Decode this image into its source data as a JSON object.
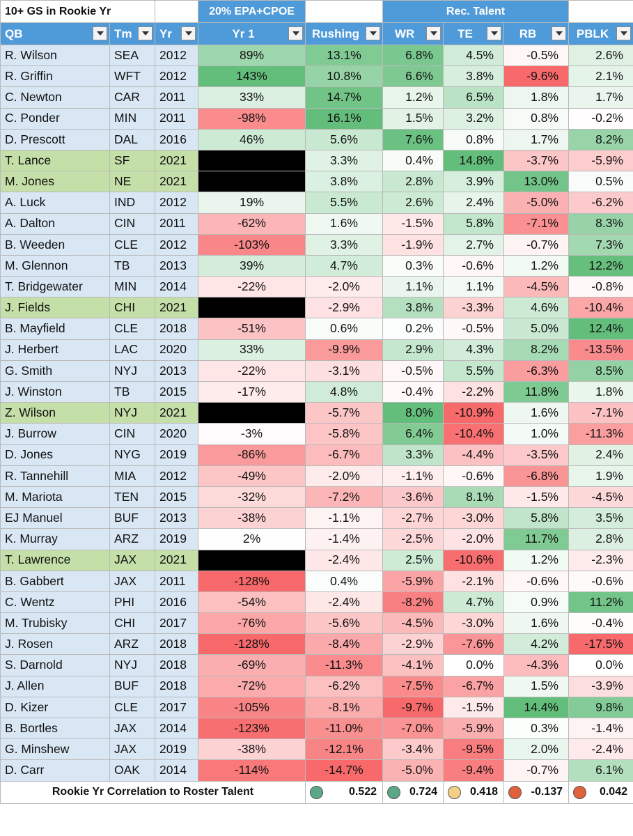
{
  "top_header": {
    "title": "10+ GS in Rookie Yr",
    "epa_group": "20% EPA+CPOE",
    "rec_group": "Rec. Talent"
  },
  "columns": [
    "QB",
    "Tm",
    "Yr",
    "Yr 1",
    "Rushing",
    "WR",
    "TE",
    "RB",
    "PBLK"
  ],
  "rows": [
    {
      "qb": "R. Wilson",
      "tm": "SEA",
      "yr": "2012",
      "yr1": "89%",
      "rush": "13.1%",
      "wr": "6.8%",
      "te": "4.5%",
      "rb": "-0.5%",
      "pblk": "2.6%"
    },
    {
      "qb": "R. Griffin",
      "tm": "WFT",
      "yr": "2012",
      "yr1": "143%",
      "rush": "10.8%",
      "wr": "6.6%",
      "te": "3.8%",
      "rb": "-9.6%",
      "pblk": "2.1%"
    },
    {
      "qb": "C. Newton",
      "tm": "CAR",
      "yr": "2011",
      "yr1": "33%",
      "rush": "14.7%",
      "wr": "1.2%",
      "te": "6.5%",
      "rb": "1.8%",
      "pblk": "1.7%"
    },
    {
      "qb": "C. Ponder",
      "tm": "MIN",
      "yr": "2011",
      "yr1": "-98%",
      "rush": "16.1%",
      "wr": "1.5%",
      "te": "3.2%",
      "rb": "0.8%",
      "pblk": "-0.2%"
    },
    {
      "qb": "D. Prescott",
      "tm": "DAL",
      "yr": "2016",
      "yr1": "46%",
      "rush": "5.6%",
      "wr": "7.6%",
      "te": "0.8%",
      "rb": "1.7%",
      "pblk": "8.2%"
    },
    {
      "qb": "T. Lance",
      "tm": "SF",
      "yr": "2021",
      "yr1": "",
      "rush": "3.3%",
      "wr": "0.4%",
      "te": "14.8%",
      "rb": "-3.7%",
      "pblk": "-5.9%"
    },
    {
      "qb": "M. Jones",
      "tm": "NE",
      "yr": "2021",
      "yr1": "",
      "rush": "3.8%",
      "wr": "2.8%",
      "te": "3.9%",
      "rb": "13.0%",
      "pblk": "0.5%"
    },
    {
      "qb": "A. Luck",
      "tm": "IND",
      "yr": "2012",
      "yr1": "19%",
      "rush": "5.5%",
      "wr": "2.6%",
      "te": "2.4%",
      "rb": "-5.0%",
      "pblk": "-6.2%"
    },
    {
      "qb": "A. Dalton",
      "tm": "CIN",
      "yr": "2011",
      "yr1": "-62%",
      "rush": "1.6%",
      "wr": "-1.5%",
      "te": "5.8%",
      "rb": "-7.1%",
      "pblk": "8.3%"
    },
    {
      "qb": "B. Weeden",
      "tm": "CLE",
      "yr": "2012",
      "yr1": "-103%",
      "rush": "3.3%",
      "wr": "-1.9%",
      "te": "2.7%",
      "rb": "-0.7%",
      "pblk": "7.3%"
    },
    {
      "qb": "M. Glennon",
      "tm": "TB",
      "yr": "2013",
      "yr1": "39%",
      "rush": "4.7%",
      "wr": "0.3%",
      "te": "-0.6%",
      "rb": "1.2%",
      "pblk": "12.2%"
    },
    {
      "qb": "T. Bridgewater",
      "tm": "MIN",
      "yr": "2014",
      "yr1": "-22%",
      "rush": "-2.0%",
      "wr": "1.1%",
      "te": "1.1%",
      "rb": "-4.5%",
      "pblk": "-0.8%"
    },
    {
      "qb": "J. Fields",
      "tm": "CHI",
      "yr": "2021",
      "yr1": "",
      "rush": "-2.9%",
      "wr": "3.8%",
      "te": "-3.3%",
      "rb": "4.6%",
      "pblk": "-10.4%"
    },
    {
      "qb": "B. Mayfield",
      "tm": "CLE",
      "yr": "2018",
      "yr1": "-51%",
      "rush": "0.6%",
      "wr": "0.2%",
      "te": "-0.5%",
      "rb": "5.0%",
      "pblk": "12.4%"
    },
    {
      "qb": "J. Herbert",
      "tm": "LAC",
      "yr": "2020",
      "yr1": "33%",
      "rush": "-9.9%",
      "wr": "2.9%",
      "te": "4.3%",
      "rb": "8.2%",
      "pblk": "-13.5%"
    },
    {
      "qb": "G. Smith",
      "tm": "NYJ",
      "yr": "2013",
      "yr1": "-22%",
      "rush": "-3.1%",
      "wr": "-0.5%",
      "te": "5.5%",
      "rb": "-6.3%",
      "pblk": "8.5%"
    },
    {
      "qb": "J. Winston",
      "tm": "TB",
      "yr": "2015",
      "yr1": "-17%",
      "rush": "4.8%",
      "wr": "-0.4%",
      "te": "-2.2%",
      "rb": "11.8%",
      "pblk": "1.8%"
    },
    {
      "qb": "Z. Wilson",
      "tm": "NYJ",
      "yr": "2021",
      "yr1": "",
      "rush": "-5.7%",
      "wr": "8.0%",
      "te": "-10.9%",
      "rb": "1.6%",
      "pblk": "-7.1%"
    },
    {
      "qb": "J. Burrow",
      "tm": "CIN",
      "yr": "2020",
      "yr1": "-3%",
      "rush": "-5.8%",
      "wr": "6.4%",
      "te": "-10.4%",
      "rb": "1.0%",
      "pblk": "-11.3%"
    },
    {
      "qb": "D. Jones",
      "tm": "NYG",
      "yr": "2019",
      "yr1": "-86%",
      "rush": "-6.7%",
      "wr": "3.3%",
      "te": "-4.4%",
      "rb": "-3.5%",
      "pblk": "2.4%"
    },
    {
      "qb": "R. Tannehill",
      "tm": "MIA",
      "yr": "2012",
      "yr1": "-49%",
      "rush": "-2.0%",
      "wr": "-1.1%",
      "te": "-0.6%",
      "rb": "-6.8%",
      "pblk": "1.9%"
    },
    {
      "qb": "M. Mariota",
      "tm": "TEN",
      "yr": "2015",
      "yr1": "-32%",
      "rush": "-7.2%",
      "wr": "-3.6%",
      "te": "8.1%",
      "rb": "-1.5%",
      "pblk": "-4.5%"
    },
    {
      "qb": "EJ Manuel",
      "tm": "BUF",
      "yr": "2013",
      "yr1": "-38%",
      "rush": "-1.1%",
      "wr": "-2.7%",
      "te": "-3.0%",
      "rb": "5.8%",
      "pblk": "3.5%"
    },
    {
      "qb": "K. Murray",
      "tm": "ARZ",
      "yr": "2019",
      "yr1": "2%",
      "rush": "-1.4%",
      "wr": "-2.5%",
      "te": "-2.0%",
      "rb": "11.7%",
      "pblk": "2.8%"
    },
    {
      "qb": "T. Lawrence",
      "tm": "JAX",
      "yr": "2021",
      "yr1": "",
      "rush": "-2.4%",
      "wr": "2.5%",
      "te": "-10.6%",
      "rb": "1.2%",
      "pblk": "-2.3%"
    },
    {
      "qb": "B. Gabbert",
      "tm": "JAX",
      "yr": "2011",
      "yr1": "-128%",
      "rush": "0.4%",
      "wr": "-5.9%",
      "te": "-2.1%",
      "rb": "-0.6%",
      "pblk": "-0.6%"
    },
    {
      "qb": "C. Wentz",
      "tm": "PHI",
      "yr": "2016",
      "yr1": "-54%",
      "rush": "-2.4%",
      "wr": "-8.2%",
      "te": "4.7%",
      "rb": "0.9%",
      "pblk": "11.2%"
    },
    {
      "qb": "M. Trubisky",
      "tm": "CHI",
      "yr": "2017",
      "yr1": "-76%",
      "rush": "-5.6%",
      "wr": "-4.5%",
      "te": "-3.0%",
      "rb": "1.6%",
      "pblk": "-0.4%"
    },
    {
      "qb": "J. Rosen",
      "tm": "ARZ",
      "yr": "2018",
      "yr1": "-128%",
      "rush": "-8.4%",
      "wr": "-2.9%",
      "te": "-7.6%",
      "rb": "4.2%",
      "pblk": "-17.5%"
    },
    {
      "qb": "S. Darnold",
      "tm": "NYJ",
      "yr": "2018",
      "yr1": "-69%",
      "rush": "-11.3%",
      "wr": "-4.1%",
      "te": "0.0%",
      "rb": "-4.3%",
      "pblk": "0.0%"
    },
    {
      "qb": "J. Allen",
      "tm": "BUF",
      "yr": "2018",
      "yr1": "-72%",
      "rush": "-6.2%",
      "wr": "-7.5%",
      "te": "-6.7%",
      "rb": "1.5%",
      "pblk": "-3.9%"
    },
    {
      "qb": "D. Kizer",
      "tm": "CLE",
      "yr": "2017",
      "yr1": "-105%",
      "rush": "-8.1%",
      "wr": "-9.7%",
      "te": "-1.5%",
      "rb": "14.4%",
      "pblk": "9.8%"
    },
    {
      "qb": "B. Bortles",
      "tm": "JAX",
      "yr": "2014",
      "yr1": "-123%",
      "rush": "-11.0%",
      "wr": "-7.0%",
      "te": "-5.9%",
      "rb": "0.3%",
      "pblk": "-1.4%"
    },
    {
      "qb": "G. Minshew",
      "tm": "JAX",
      "yr": "2019",
      "yr1": "-38%",
      "rush": "-12.1%",
      "wr": "-3.4%",
      "te": "-9.5%",
      "rb": "2.0%",
      "pblk": "-2.4%"
    },
    {
      "qb": "D. Carr",
      "tm": "OAK",
      "yr": "2014",
      "yr1": "-114%",
      "rush": "-14.7%",
      "wr": "-5.0%",
      "te": "-9.4%",
      "rb": "-0.7%",
      "pblk": "6.1%"
    }
  ],
  "footer": {
    "label": "Rookie Yr Correlation to Roster Talent",
    "values": [
      {
        "value": "0.522",
        "dot_color": "#5ba889"
      },
      {
        "value": "0.724",
        "dot_color": "#5ba889"
      },
      {
        "value": "0.418",
        "dot_color": "#f3cf86"
      },
      {
        "value": "-0.137",
        "dot_color": "#e0623a"
      },
      {
        "value": "0.042",
        "dot_color": "#e0623a"
      }
    ]
  },
  "colors": {
    "header_blue": "#4f9ad9",
    "qb_rookie_2021": "#c5dfa8",
    "qb_other": "#d9e7f5",
    "green_strong": "#63be7b",
    "red_strong": "#f8696b",
    "blacked_out": "#000000"
  }
}
